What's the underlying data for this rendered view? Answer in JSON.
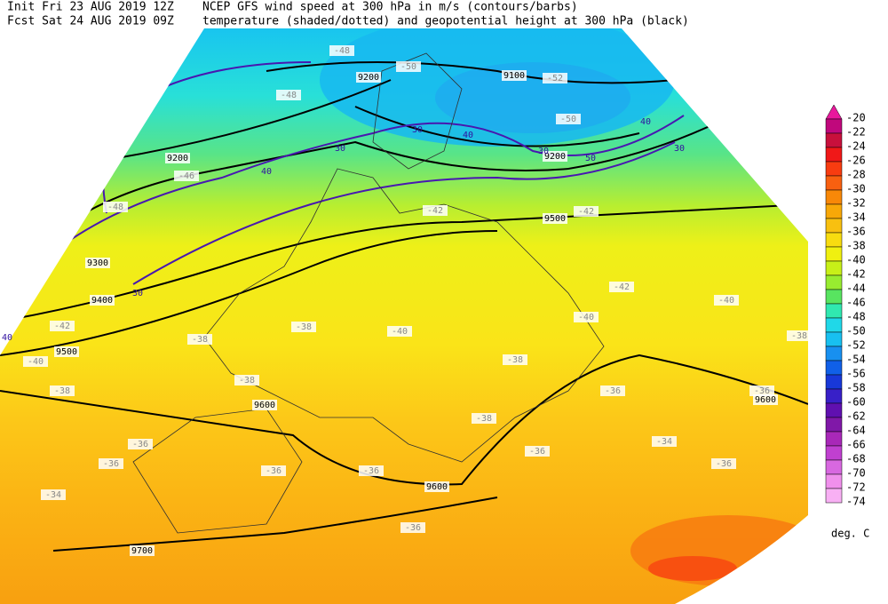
{
  "header": {
    "init": "Init  Fri 23 AUG 2019 12Z",
    "fcst": "Fcst Sat 24 AUG 2019 09Z",
    "line1": "NCEP GFS wind speed at 300 hPa in m/s (contours/barbs)",
    "line2": "temperature (shaded/dotted) and geopotential height at 300 hPa (black)"
  },
  "colorbar": {
    "levels": [
      "-20",
      "-22",
      "-24",
      "-26",
      "-28",
      "-30",
      "-32",
      "-34",
      "-36",
      "-38",
      "-40",
      "-42",
      "-44",
      "-46",
      "-48",
      "-50",
      "-52",
      "-54",
      "-56",
      "-58",
      "-60",
      "-62",
      "-64",
      "-66",
      "-68",
      "-70",
      "-72",
      "-74"
    ],
    "colors": [
      "#e8189c",
      "#c0087c",
      "#c8103c",
      "#f01818",
      "#f83c10",
      "#f86010",
      "#f88808",
      "#f8a808",
      "#f8c010",
      "#f8dc10",
      "#f0f010",
      "#c8f018",
      "#98ec30",
      "#58e460",
      "#30e8b0",
      "#20d8e8",
      "#18c0f0",
      "#1890f0",
      "#1060e8",
      "#1838d8",
      "#3820c8",
      "#6010b0",
      "#8018a8",
      "#a828b8",
      "#c040d0",
      "#d868e0",
      "#f090ec",
      "#f8b0f4"
    ],
    "unit": "deg. C"
  },
  "map": {
    "height_labels": [
      "9100",
      "9200",
      "9200",
      "9200",
      "9300",
      "9400",
      "9500",
      "9500",
      "9600",
      "9600",
      "9600",
      "9700"
    ],
    "temperature_labels": [
      "-48",
      "-50",
      "-52",
      "-48",
      "-50",
      "-46",
      "-48",
      "-42",
      "-42",
      "-42",
      "-40",
      "-42",
      "-38",
      "-38",
      "-40",
      "-40",
      "-40",
      "-38",
      "-38",
      "-38",
      "-36",
      "-36",
      "-38",
      "-34",
      "-36",
      "-36",
      "-36",
      "-36",
      "-36",
      "-34",
      "-36",
      "-36",
      "-38"
    ],
    "wind_labels": [
      "30",
      "40",
      "30",
      "40",
      "30",
      "40",
      "30",
      "50",
      "30",
      "40"
    ]
  }
}
